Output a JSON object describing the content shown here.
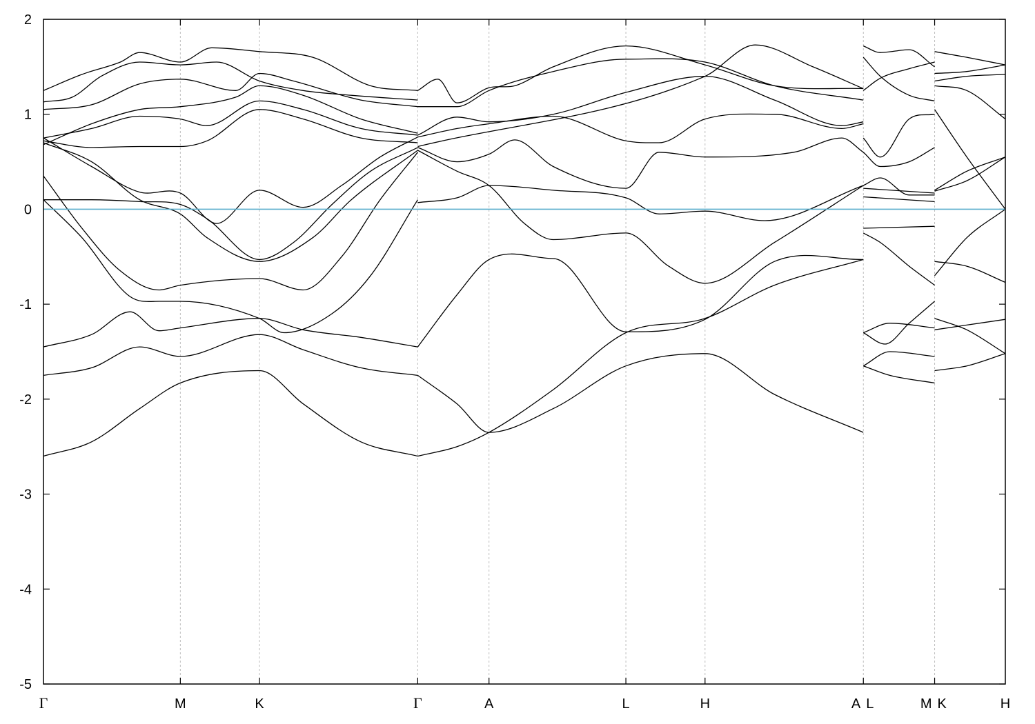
{
  "chart_data": {
    "type": "line",
    "title": "",
    "xlabel": "",
    "ylabel": "",
    "ylim": [
      -5,
      2
    ],
    "yticks": [
      2,
      1,
      0,
      -1,
      -2,
      -3,
      -4,
      -5
    ],
    "grid": "vertical dotted lines at high-symmetry points",
    "legend": "none",
    "reference_line": {
      "y": 0,
      "color": "#5aaecd"
    },
    "kpoints": [
      {
        "label": "Γ",
        "pos": 0.0
      },
      {
        "label": "M",
        "pos": 0.1423
      },
      {
        "label": "K",
        "pos": 0.2246
      },
      {
        "label": "Γ",
        "pos": 0.3891
      },
      {
        "label": "A",
        "pos": 0.4632
      },
      {
        "label": "L",
        "pos": 0.6055
      },
      {
        "label": "H",
        "pos": 0.6878
      },
      {
        "label": "A",
        "pos": 0.8524
      },
      {
        "label": "L",
        "pos": 0.8524
      },
      {
        "label": "M",
        "pos": 0.9265
      },
      {
        "label": "K",
        "pos": 0.9265
      },
      {
        "label": "H",
        "pos": 1.0
      }
    ],
    "segments": [
      {
        "range": [
          0.0,
          0.3891
        ],
        "series": [
          {
            "x": [
              0.0,
              0.05,
              0.1,
              0.1423,
              0.2246,
              0.27,
              0.33,
              0.3891
            ],
            "y": [
              -2.6,
              -2.45,
              -2.1,
              -1.83,
              -1.7,
              -2.05,
              -2.45,
              -2.6
            ]
          },
          {
            "x": [
              0.0,
              0.05,
              0.1,
              0.1423,
              0.2246,
              0.27,
              0.33,
              0.3891
            ],
            "y": [
              -1.75,
              -1.67,
              -1.45,
              -1.55,
              -1.32,
              -1.48,
              -1.67,
              -1.75
            ]
          },
          {
            "x": [
              0.0,
              0.05,
              0.09,
              0.12,
              0.1423,
              0.2246,
              0.27,
              0.33,
              0.3891
            ],
            "y": [
              -1.45,
              -1.32,
              -1.08,
              -1.28,
              -1.25,
              -1.15,
              -1.27,
              -1.35,
              -1.45
            ]
          },
          {
            "x": [
              0.0,
              0.04,
              0.09,
              0.12,
              0.1423,
              0.2246,
              0.25,
              0.3,
              0.34,
              0.3891
            ],
            "y": [
              0.1,
              -0.3,
              -0.92,
              -0.97,
              -0.97,
              -1.15,
              -1.3,
              -1.1,
              -0.7,
              0.1
            ]
          },
          {
            "x": [
              0.0,
              0.04,
              0.08,
              0.12,
              0.1423,
              0.2246,
              0.27,
              0.31,
              0.35,
              0.3891
            ],
            "y": [
              0.35,
              -0.2,
              -0.65,
              -0.85,
              -0.8,
              -0.73,
              -0.85,
              -0.5,
              0.1,
              0.6
            ]
          },
          {
            "x": [
              0.0,
              0.05,
              0.1,
              0.1423,
              0.17,
              0.2246,
              0.26,
              0.3,
              0.34,
              0.3891
            ],
            "y": [
              0.1,
              0.1,
              0.08,
              0.05,
              -0.1,
              -0.53,
              -0.35,
              0.05,
              0.4,
              0.65
            ]
          },
          {
            "x": [
              0.0,
              0.05,
              0.1,
              0.1423,
              0.18,
              0.2246,
              0.27,
              0.31,
              0.35,
              0.3891
            ],
            "y": [
              0.75,
              0.45,
              0.18,
              0.17,
              -0.15,
              0.2,
              0.02,
              0.25,
              0.55,
              0.76
            ]
          },
          {
            "x": [
              0.0,
              0.05,
              0.1,
              0.1423,
              0.17,
              0.2246,
              0.28,
              0.32,
              0.3891
            ],
            "y": [
              0.7,
              0.5,
              0.1,
              -0.05,
              -0.3,
              -0.55,
              -0.3,
              0.1,
              0.62
            ]
          },
          {
            "x": [
              0.0,
              0.05,
              0.1,
              0.1423,
              0.17,
              0.2246,
              0.27,
              0.33,
              0.3891
            ],
            "y": [
              0.72,
              0.65,
              0.66,
              0.66,
              0.72,
              1.05,
              0.95,
              0.75,
              0.7
            ]
          },
          {
            "x": [
              0.0,
              0.05,
              0.1,
              0.1423,
              0.17,
              0.2246,
              0.27,
              0.33,
              0.3891
            ],
            "y": [
              0.75,
              0.85,
              0.98,
              0.95,
              0.88,
              1.14,
              1.05,
              0.85,
              0.78
            ]
          },
          {
            "x": [
              0.0,
              0.05,
              0.1,
              0.1423,
              0.2,
              0.2246,
              0.27,
              0.33,
              0.3891
            ],
            "y": [
              0.68,
              0.9,
              1.05,
              1.08,
              1.18,
              1.3,
              1.2,
              0.95,
              0.8
            ]
          },
          {
            "x": [
              0.0,
              0.05,
              0.1,
              0.1423,
              0.2,
              0.2246,
              0.26,
              0.33,
              0.3891
            ],
            "y": [
              1.05,
              1.1,
              1.32,
              1.37,
              1.25,
              1.43,
              1.35,
              1.15,
              1.08
            ]
          },
          {
            "x": [
              0.0,
              0.03,
              0.06,
              0.1,
              0.1423,
              0.18,
              0.2246,
              0.27,
              0.32,
              0.3891
            ],
            "y": [
              1.13,
              1.18,
              1.4,
              1.55,
              1.52,
              1.55,
              1.35,
              1.25,
              1.2,
              1.15
            ]
          },
          {
            "x": [
              0.0,
              0.04,
              0.08,
              0.1,
              0.1423,
              0.175,
              0.2246,
              0.28,
              0.34,
              0.3891
            ],
            "y": [
              1.25,
              1.42,
              1.55,
              1.65,
              1.55,
              1.7,
              1.66,
              1.6,
              1.3,
              1.25
            ]
          }
        ]
      },
      {
        "range": [
          0.3891,
          0.8524
        ],
        "series": [
          {
            "x": [
              0.3891,
              0.43,
              0.4632,
              0.53,
              0.6055,
              0.6878,
              0.76,
              0.8524
            ],
            "y": [
              -1.75,
              -2.05,
              -2.35,
              -2.1,
              -1.65,
              -1.52,
              -1.95,
              -2.35
            ]
          },
          {
            "x": [
              0.3891,
              0.43,
              0.4632,
              0.53,
              0.6055,
              0.6878,
              0.76,
              0.8524
            ],
            "y": [
              -2.6,
              -2.5,
              -2.35,
              -1.9,
              -1.3,
              -1.15,
              -0.8,
              -0.53
            ]
          },
          {
            "x": [
              0.3891,
              0.43,
              0.4632,
              0.53,
              0.6055,
              0.6878,
              0.76,
              0.8524
            ],
            "y": [
              -1.45,
              -0.9,
              -0.53,
              -0.52,
              -1.29,
              -1.16,
              -0.55,
              -0.53
            ]
          },
          {
            "x": [
              0.3891,
              0.43,
              0.4632,
              0.5,
              0.53,
              0.6055,
              0.65,
              0.6878,
              0.76,
              0.8524
            ],
            "y": [
              0.62,
              0.4,
              0.25,
              -0.15,
              -0.32,
              -0.25,
              -0.6,
              -0.78,
              -0.35,
              0.25
            ]
          },
          {
            "x": [
              0.3891,
              0.43,
              0.4632,
              0.53,
              0.6055,
              0.64,
              0.6878,
              0.75,
              0.8524
            ],
            "y": [
              0.07,
              0.12,
              0.25,
              0.2,
              0.12,
              -0.05,
              -0.02,
              -0.12,
              0.25
            ]
          },
          {
            "x": [
              0.3891,
              0.43,
              0.4632,
              0.49,
              0.53,
              0.6055,
              0.64,
              0.6878,
              0.78,
              0.83,
              0.8524
            ],
            "y": [
              0.65,
              0.5,
              0.58,
              0.73,
              0.45,
              0.22,
              0.6,
              0.55,
              0.6,
              0.75,
              0.6
            ]
          },
          {
            "x": [
              0.3891,
              0.43,
              0.4632,
              0.53,
              0.6055,
              0.64,
              0.6878,
              0.76,
              0.83,
              0.8524
            ],
            "y": [
              0.76,
              0.85,
              0.9,
              0.98,
              0.72,
              0.7,
              0.95,
              1.0,
              0.85,
              0.9
            ]
          },
          {
            "x": [
              0.3891,
              0.43,
              0.4632,
              0.53,
              0.6055,
              0.6878,
              0.76,
              0.83,
              0.8524
            ],
            "y": [
              0.78,
              0.97,
              0.92,
              1.0,
              1.23,
              1.4,
              1.15,
              0.88,
              0.92
            ]
          },
          {
            "x": [
              0.3891,
              0.43,
              0.4632,
              0.53,
              0.6055,
              0.6878,
              0.76,
              0.8524
            ],
            "y": [
              1.08,
              1.08,
              1.25,
              1.45,
              1.58,
              1.55,
              1.3,
              1.15
            ]
          },
          {
            "x": [
              0.3891,
              0.41,
              0.43,
              0.4632,
              0.49,
              0.53,
              0.6055,
              0.6878,
              0.76,
              0.8524
            ],
            "y": [
              1.25,
              1.37,
              1.12,
              1.28,
              1.3,
              1.5,
              1.72,
              1.52,
              1.3,
              1.27
            ]
          },
          {
            "x": [
              0.3891,
              0.6878,
              0.74,
              0.8,
              0.8524
            ],
            "y": [
              0.66,
              1.4,
              1.73,
              1.5,
              1.27
            ]
          }
        ]
      },
      {
        "range": [
          0.8524,
          0.9265
        ],
        "series": [
          {
            "x": [
              0.8524,
              0.88,
              0.9265
            ],
            "y": [
              -1.65,
              -1.75,
              -1.83
            ]
          },
          {
            "x": [
              0.8524,
              0.875,
              0.9,
              0.9265
            ],
            "y": [
              -1.3,
              -1.42,
              -1.2,
              -0.97
            ]
          },
          {
            "x": [
              0.8524,
              0.88,
              0.9265
            ],
            "y": [
              -1.65,
              -1.5,
              -1.55
            ]
          },
          {
            "x": [
              0.8524,
              0.88,
              0.9265
            ],
            "y": [
              -1.3,
              -1.2,
              -1.25
            ]
          },
          {
            "x": [
              0.8524,
              0.87,
              0.9,
              0.9265
            ],
            "y": [
              -0.25,
              -0.35,
              -0.6,
              -0.8
            ]
          },
          {
            "x": [
              0.8524,
              0.9265
            ],
            "y": [
              -0.2,
              -0.18
            ]
          },
          {
            "x": [
              0.8524,
              0.9265
            ],
            "y": [
              0.13,
              0.08
            ]
          },
          {
            "x": [
              0.8524,
              0.9265
            ],
            "y": [
              0.22,
              0.17
            ]
          },
          {
            "x": [
              0.8524,
              0.87,
              0.9,
              0.9265
            ],
            "y": [
              0.25,
              0.33,
              0.15,
              0.15
            ]
          },
          {
            "x": [
              0.8524,
              0.87,
              0.9,
              0.9265
            ],
            "y": [
              0.75,
              0.55,
              0.95,
              1.0
            ]
          },
          {
            "x": [
              0.8524,
              0.87,
              0.9,
              0.9265
            ],
            "y": [
              0.6,
              0.45,
              0.5,
              0.65
            ]
          },
          {
            "x": [
              0.8524,
              0.87,
              0.9,
              0.9265
            ],
            "y": [
              1.25,
              1.38,
              1.48,
              1.55
            ]
          },
          {
            "x": [
              0.8524,
              0.87,
              0.9,
              0.9265
            ],
            "y": [
              1.6,
              1.4,
              1.2,
              1.14
            ]
          },
          {
            "x": [
              0.8524,
              0.87,
              0.9,
              0.9265
            ],
            "y": [
              1.72,
              1.65,
              1.68,
              1.5
            ]
          }
        ]
      },
      {
        "range": [
          0.9265,
          1.0
        ],
        "series": [
          {
            "x": [
              0.9265,
              0.96,
              1.0
            ],
            "y": [
              -1.7,
              -1.65,
              -1.52
            ]
          },
          {
            "x": [
              0.9265,
              0.96,
              1.0
            ],
            "y": [
              -1.15,
              -1.27,
              -1.52
            ]
          },
          {
            "x": [
              0.9265,
              0.96,
              1.0
            ],
            "y": [
              -1.27,
              -1.22,
              -1.16
            ]
          },
          {
            "x": [
              0.9265,
              0.96,
              1.0
            ],
            "y": [
              -0.55,
              -0.6,
              -0.77
            ]
          },
          {
            "x": [
              0.9265,
              0.96,
              1.0
            ],
            "y": [
              -0.7,
              -0.3,
              0.0
            ]
          },
          {
            "x": [
              0.9265,
              0.96,
              1.0
            ],
            "y": [
              0.19,
              0.3,
              0.55
            ]
          },
          {
            "x": [
              0.9265,
              0.96,
              1.0
            ],
            "y": [
              0.2,
              0.4,
              0.55
            ]
          },
          {
            "x": [
              0.9265,
              0.96,
              1.0
            ],
            "y": [
              1.3,
              1.25,
              0.95
            ]
          },
          {
            "x": [
              0.9265,
              0.96,
              1.0
            ],
            "y": [
              1.05,
              0.55,
              0.0
            ]
          },
          {
            "x": [
              0.9265,
              0.96,
              1.0
            ],
            "y": [
              1.43,
              1.45,
              1.52
            ]
          },
          {
            "x": [
              0.9265,
              0.96,
              1.0
            ],
            "y": [
              1.35,
              1.4,
              1.42
            ]
          },
          {
            "x": [
              0.9265,
              0.96,
              1.0
            ],
            "y": [
              1.66,
              1.6,
              1.52
            ]
          }
        ]
      }
    ]
  }
}
